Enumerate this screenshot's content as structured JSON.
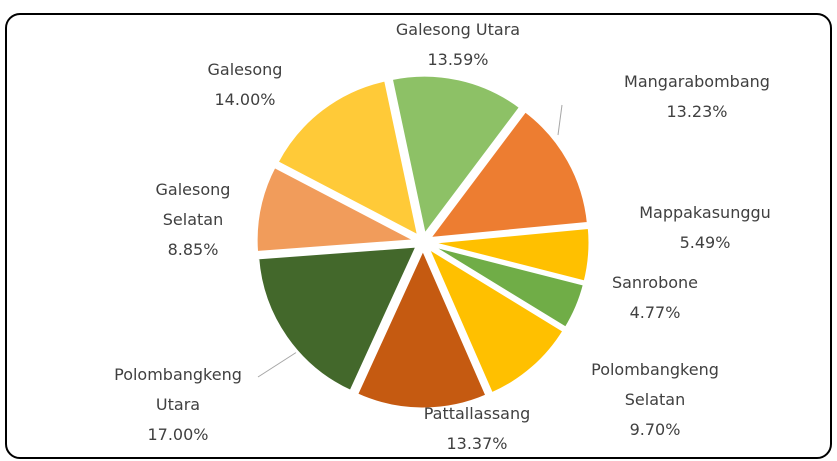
{
  "chart_data": {
    "type": "pie",
    "categories": [
      "Galesong Utara",
      "Mangarabombang",
      "Mappakasunggu",
      "Sanrobone",
      "Polombangkeng Selatan",
      "Pattallassang",
      "Polombangkeng Utara",
      "Galesong Selatan",
      "Galesong"
    ],
    "values": [
      13.59,
      13.23,
      5.49,
      4.77,
      9.7,
      13.37,
      17.0,
      8.85,
      14.0
    ],
    "value_labels": [
      "13.59%",
      "13.23%",
      "5.49%",
      "4.77%",
      "9.70%",
      "13.37%",
      "17.00%",
      "8.85%",
      "14.00%"
    ],
    "colors": [
      "#8dc166",
      "#ed7d31",
      "#ffc000",
      "#70ad47",
      "#ffc000",
      "#c55a11",
      "#43682b",
      "#f19c5b",
      "#ffca38"
    ]
  }
}
